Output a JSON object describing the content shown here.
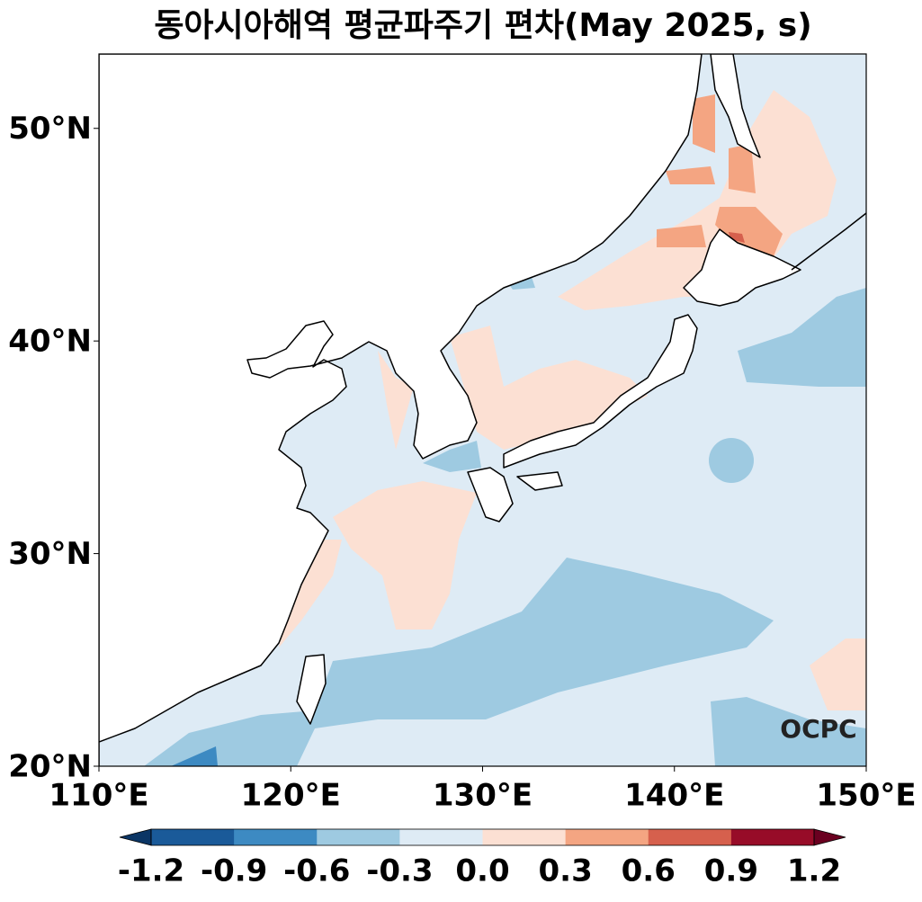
{
  "chart_data": {
    "type": "map",
    "title": "동아시아해역 평균파주기 편차(May 2025, s)",
    "xlim": [
      110,
      150
    ],
    "ylim": [
      20,
      53.5
    ],
    "xticks": [
      {
        "value": 110,
        "label": "110°E"
      },
      {
        "value": 120,
        "label": "120°E"
      },
      {
        "value": 130,
        "label": "130°E"
      },
      {
        "value": 140,
        "label": "140°E"
      },
      {
        "value": 150,
        "label": "150°E"
      }
    ],
    "yticks": [
      {
        "value": 20,
        "label": "20°N"
      },
      {
        "value": 30,
        "label": "30°N"
      },
      {
        "value": 40,
        "label": "40°N"
      },
      {
        "value": 50,
        "label": "50°N"
      }
    ],
    "colorbar": {
      "levels": [
        -1.2,
        -0.9,
        -0.6,
        -0.3,
        {
          "value": 0,
          "label": "0.0"
        },
        0.3,
        0.6,
        0.9,
        1.2
      ],
      "colors": [
        "#1a5a99",
        "#3d8ac2",
        "#9ecae1",
        "#deebf5",
        "#fce0d3",
        "#f4a582",
        "#d6604d",
        "#970c28"
      ],
      "extend_colors": [
        "#0b3565",
        "#6a0020"
      ]
    },
    "logo": "OCPC"
  }
}
